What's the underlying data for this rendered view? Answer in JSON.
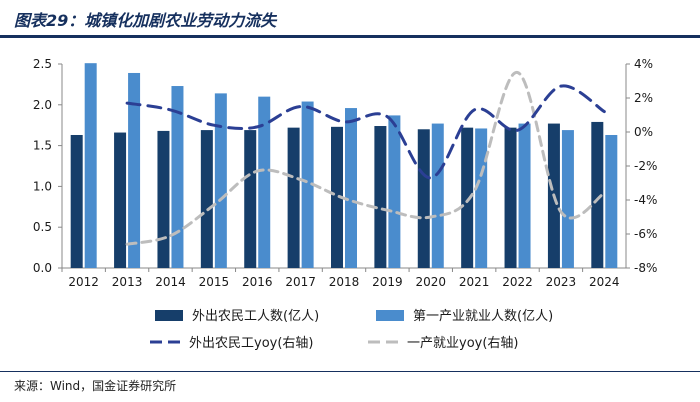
{
  "title": "图表29：城镇化加剧农业劳动力流失",
  "source": "来源：Wind，国金证券研究所",
  "colors": {
    "bar_dark": "#163e6a",
    "bar_light": "#4a8ccd",
    "line_dark": "#2b3f94",
    "line_light": "#bdbdbd",
    "frame": "#16305e"
  },
  "chart_data": {
    "type": "bar",
    "categories": [
      "2012",
      "2013",
      "2014",
      "2015",
      "2016",
      "2017",
      "2018",
      "2019",
      "2020",
      "2021",
      "2022",
      "2023",
      "2024"
    ],
    "left_axis": {
      "min": 0,
      "max": 2.5,
      "ticks": [
        "0.0",
        "0.5",
        "1.0",
        "1.5",
        "2.0",
        "2.5"
      ]
    },
    "right_axis": {
      "min": -8,
      "max": 4,
      "ticks": [
        "-8%",
        "-6%",
        "-4%",
        "-2%",
        "0%",
        "2%",
        "4%"
      ]
    },
    "series": [
      {
        "name": "外出农民工人数(亿人)",
        "type": "bar",
        "axis": "left",
        "values": [
          1.63,
          1.66,
          1.68,
          1.69,
          1.69,
          1.72,
          1.73,
          1.74,
          1.7,
          1.72,
          1.72,
          1.77,
          1.79
        ]
      },
      {
        "name": "第一产业就业人数(亿人)",
        "type": "bar",
        "axis": "left",
        "values": [
          2.51,
          2.39,
          2.23,
          2.14,
          2.1,
          2.04,
          1.96,
          1.87,
          1.77,
          1.71,
          1.77,
          1.69,
          1.63
        ]
      },
      {
        "name": "外出农民工yoy(右轴)",
        "type": "line",
        "style": "dashed",
        "axis": "right",
        "values": [
          null,
          1.7,
          1.3,
          0.4,
          0.3,
          1.5,
          0.6,
          0.9,
          -2.7,
          1.3,
          0.1,
          2.7,
          1.2
        ]
      },
      {
        "name": "一产就业yoy(右轴)",
        "type": "line",
        "style": "dashed",
        "axis": "right",
        "values": [
          null,
          -6.6,
          -6.1,
          -4.3,
          -2.3,
          -2.8,
          -3.9,
          -4.6,
          -5.0,
          -3.5,
          3.5,
          -4.7,
          -3.6
        ]
      }
    ]
  }
}
